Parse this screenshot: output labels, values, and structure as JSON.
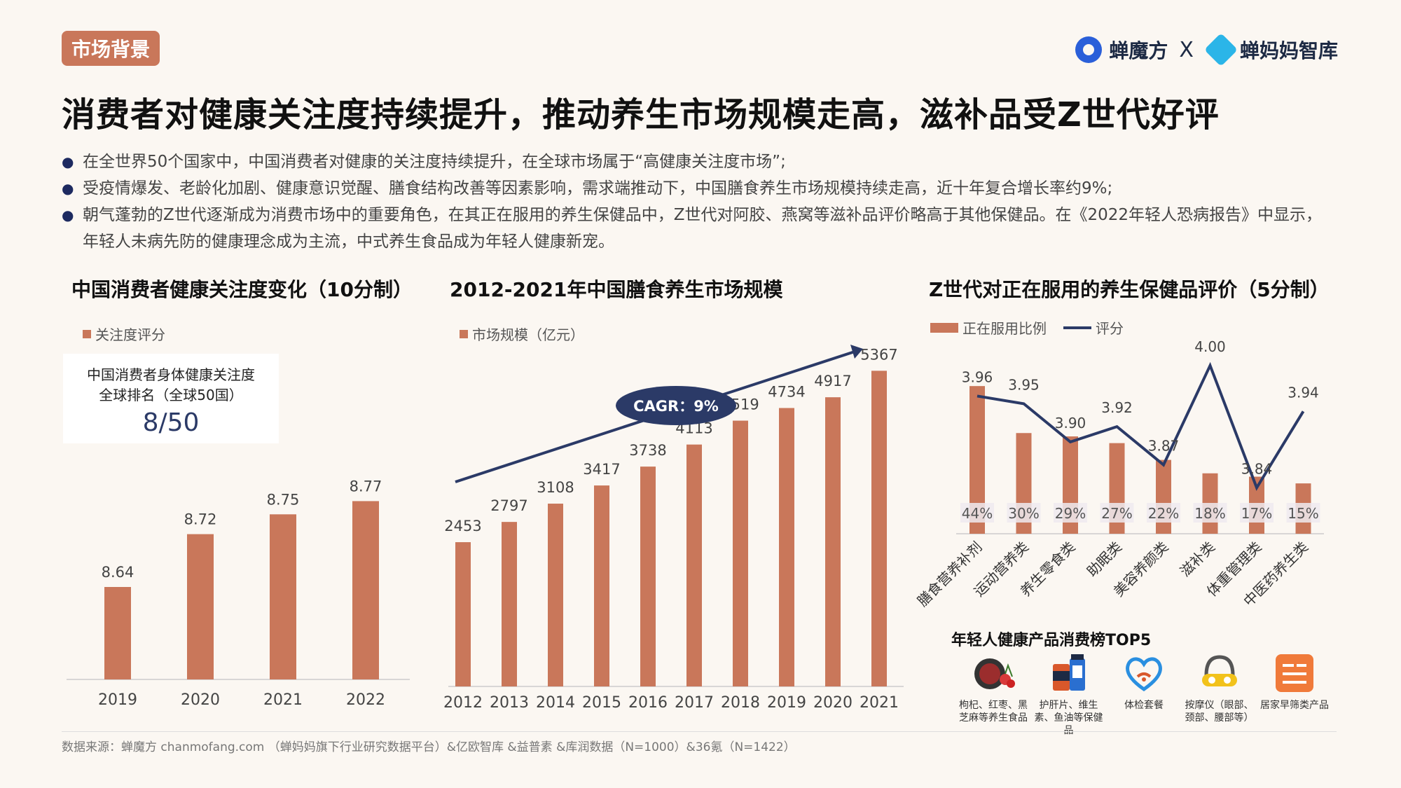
{
  "header": {
    "tag": "市场背景",
    "brand1": "蝉魔方",
    "brand_sep": "X",
    "brand2": "蝉妈妈智库",
    "title": "消费者对健康关注度持续提升，推动养生市场规模走高，滋补品受Z世代好评"
  },
  "bullets": [
    "在全世界50个国家中，中国消费者对健康的关注度持续提升，在全球市场属于“高健康关注度市场”;",
    "受疫情爆发、老龄化加剧、健康意识觉醒、膳食结构改善等因素影响，需求端推动下，中国膳食养生市场规模持续走高，近十年复合增长率约9%;",
    "朝气蓬勃的Z世代逐渐成为消费市场中的重要角色，在其正在服用的养生保健品中，Z世代对阿胶、燕窝等滋补品评价略高于其他保健品。在《2022年轻人恐病报告》中显示，年轻人未病先防的健康理念成为主流，中式养生食品成为年轻人健康新宠。"
  ],
  "rank_box": {
    "line1": "中国消费者身体健康关注度",
    "line2": "全球排名（全球50国）",
    "value": "8/50"
  },
  "top5": {
    "title": "年轻人健康产品消费榜TOP5",
    "items": [
      {
        "label": "枸杞、红枣、黑芝麻等养生食品",
        "icon": "goji-bowl-icon"
      },
      {
        "label": "护肝片、维生素、鱼油等保健品",
        "icon": "supplement-bottle-icon"
      },
      {
        "label": "体检套餐",
        "icon": "heart-checkup-icon"
      },
      {
        "label": "按摩仪（眼部、颈部、腰部等）",
        "icon": "massager-icon"
      },
      {
        "label": "居家早筛类产品",
        "icon": "home-test-kit-icon"
      }
    ]
  },
  "footer": "数据来源：蝉魔方 chanmofang.com （蝉妈妈旗下行业研究数据平台）&亿欧智库 &益普素 &库润数据（N=1000）&36氪（N=1422）",
  "colors": {
    "bar": "#c9775a",
    "line": "#2b3a67",
    "tag_bg": "#c9775a"
  },
  "chart_data": [
    {
      "type": "bar",
      "title": "中国消费者健康关注度变化（10分制）",
      "legend": [
        "关注度评分"
      ],
      "categories": [
        "2019",
        "2020",
        "2021",
        "2022"
      ],
      "values": [
        8.64,
        8.72,
        8.75,
        8.77
      ],
      "ylim": [
        8.5,
        8.85
      ]
    },
    {
      "type": "bar",
      "title": "2012-2021年中国膳食养生市场规模",
      "legend": [
        "市场规模（亿元）"
      ],
      "categories": [
        "2012",
        "2013",
        "2014",
        "2015",
        "2016",
        "2017",
        "2018",
        "2019",
        "2020",
        "2021"
      ],
      "values": [
        2453,
        2797,
        3108,
        3417,
        3738,
        4113,
        4519,
        4734,
        4917,
        5367
      ],
      "ylim": [
        0,
        5800
      ],
      "annotation": "CAGR：9%"
    },
    {
      "type": "bar",
      "title": "Z世代对正在服用的养生保健品评价（5分制）",
      "legend": [
        "正在服用比例",
        "评分"
      ],
      "categories": [
        "膳食营养补剂",
        "运动营养类",
        "养生零食类",
        "助眠类",
        "美容养颜类",
        "滋补类",
        "体重管理类",
        "中医药养生类"
      ],
      "series": [
        {
          "name": "正在服用比例",
          "type": "bar",
          "values": [
            44,
            30,
            29,
            27,
            22,
            18,
            17,
            15
          ],
          "labels": [
            "44%",
            "30%",
            "29%",
            "27%",
            "22%",
            "18%",
            "17%",
            "15%"
          ]
        },
        {
          "name": "评分",
          "type": "line",
          "values": [
            3.96,
            3.95,
            3.9,
            3.92,
            3.87,
            4.0,
            3.84,
            3.94
          ],
          "labels": [
            "3.96",
            "3.95",
            "3.90",
            "3.92",
            "3.87",
            "4.00",
            "3.84",
            "3.94"
          ]
        }
      ],
      "ylim_bar": [
        0,
        48
      ],
      "ylim_line": [
        3.8,
        4.02
      ]
    }
  ]
}
